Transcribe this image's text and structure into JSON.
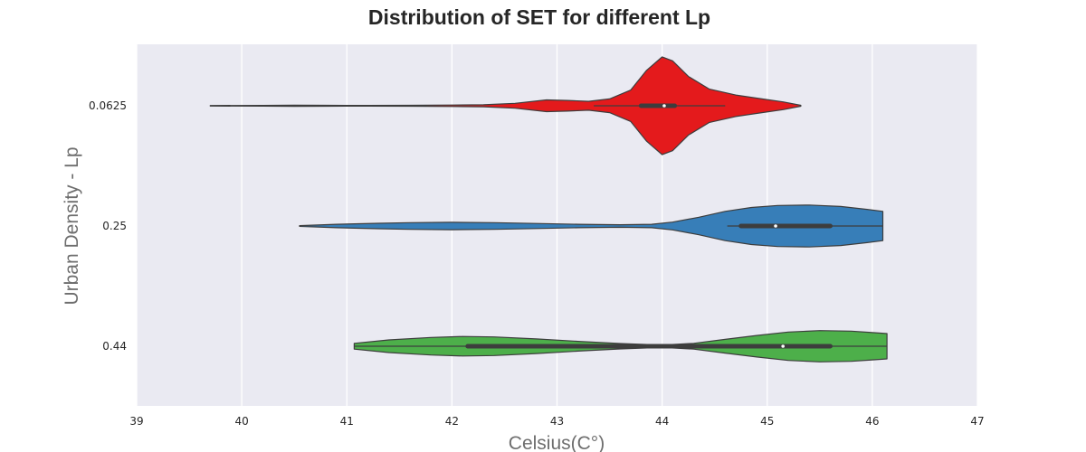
{
  "chart_data": {
    "type": "violin",
    "orientation": "horizontal",
    "title": "Distribution of SET for different Lp",
    "xlabel": "Celsius(C°)",
    "ylabel": "Urban Density - Lp",
    "xlim": [
      39,
      47
    ],
    "xticks": [
      "39",
      "40",
      "41",
      "42",
      "43",
      "44",
      "45",
      "46",
      "47"
    ],
    "grid": true,
    "background": "#eaeaf2",
    "series": [
      {
        "category": "0.0625",
        "color": "#e41a1c",
        "min": 39.7,
        "max": 45.32,
        "q1": 43.8,
        "median": 44.02,
        "q3": 44.12,
        "whisker_low": 43.35,
        "whisker_high": 44.6,
        "density": [
          [
            39.7,
            0.003
          ],
          [
            40.2,
            0.004
          ],
          [
            40.5,
            0.006
          ],
          [
            40.8,
            0.005
          ],
          [
            41.2,
            0.004
          ],
          [
            41.6,
            0.005
          ],
          [
            42.0,
            0.007
          ],
          [
            42.3,
            0.01
          ],
          [
            42.6,
            0.025
          ],
          [
            42.9,
            0.06
          ],
          [
            43.1,
            0.055
          ],
          [
            43.3,
            0.045
          ],
          [
            43.5,
            0.07
          ],
          [
            43.7,
            0.16
          ],
          [
            43.85,
            0.36
          ],
          [
            44.0,
            0.5
          ],
          [
            44.1,
            0.46
          ],
          [
            44.25,
            0.3
          ],
          [
            44.45,
            0.17
          ],
          [
            44.7,
            0.11
          ],
          [
            44.95,
            0.07
          ],
          [
            45.15,
            0.04
          ],
          [
            45.32,
            0.005
          ]
        ]
      },
      {
        "category": "0.25",
        "color": "#377eb8",
        "min": 40.55,
        "max": 46.1,
        "q1": 44.75,
        "median": 45.08,
        "q3": 45.6,
        "whisker_low": 44.62,
        "whisker_high": 46.1,
        "density": [
          [
            40.55,
            0.004
          ],
          [
            40.9,
            0.018
          ],
          [
            41.3,
            0.028
          ],
          [
            41.6,
            0.034
          ],
          [
            42.0,
            0.038
          ],
          [
            42.4,
            0.034
          ],
          [
            42.8,
            0.026
          ],
          [
            43.2,
            0.018
          ],
          [
            43.6,
            0.013
          ],
          [
            43.9,
            0.018
          ],
          [
            44.1,
            0.04
          ],
          [
            44.35,
            0.09
          ],
          [
            44.6,
            0.15
          ],
          [
            44.85,
            0.19
          ],
          [
            45.1,
            0.21
          ],
          [
            45.4,
            0.215
          ],
          [
            45.7,
            0.2
          ],
          [
            45.95,
            0.17
          ],
          [
            46.1,
            0.15
          ]
        ]
      },
      {
        "category": "0.44",
        "color": "#4daf4a",
        "min": 41.07,
        "max": 46.14,
        "q1": 42.15,
        "median": 45.15,
        "q3": 45.6,
        "whisker_low": 41.07,
        "whisker_high": 46.14,
        "density": [
          [
            41.07,
            0.03
          ],
          [
            41.4,
            0.065
          ],
          [
            41.8,
            0.09
          ],
          [
            42.1,
            0.1
          ],
          [
            42.4,
            0.095
          ],
          [
            42.8,
            0.075
          ],
          [
            43.2,
            0.05
          ],
          [
            43.6,
            0.028
          ],
          [
            44.0,
            0.012
          ],
          [
            44.3,
            0.03
          ],
          [
            44.6,
            0.07
          ],
          [
            44.9,
            0.11
          ],
          [
            45.2,
            0.145
          ],
          [
            45.5,
            0.16
          ],
          [
            45.8,
            0.155
          ],
          [
            46.0,
            0.14
          ],
          [
            46.14,
            0.13
          ]
        ]
      }
    ]
  }
}
